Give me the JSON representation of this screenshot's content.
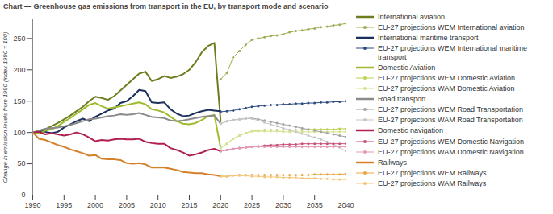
{
  "chart_data": {
    "type": "line",
    "title": "Chart — Greenhouse gas emissions from transport in the EU, by transport mode and scenario",
    "y_label": "Change in emission levels from 1990 (index 1990 = 100)",
    "x": [
      1990,
      1991,
      1992,
      1993,
      1994,
      1995,
      1996,
      1997,
      1998,
      1999,
      2000,
      2001,
      2002,
      2003,
      2004,
      2005,
      2006,
      2007,
      2008,
      2009,
      2010,
      2011,
      2012,
      2013,
      2014,
      2015,
      2016,
      2017,
      2018,
      2019,
      2020,
      2021,
      2022,
      2023,
      2024,
      2025,
      2026,
      2027,
      2028,
      2029,
      2030,
      2031,
      2032,
      2033,
      2034,
      2035,
      2036,
      2037,
      2038,
      2039,
      2040
    ],
    "xlim": [
      1990,
      2040
    ],
    "xticks": [
      1990,
      1995,
      2000,
      2005,
      2010,
      2015,
      2020,
      2025,
      2030,
      2035,
      2040
    ],
    "ylim": [
      0,
      280
    ],
    "yticks": [
      0,
      50,
      100,
      150,
      200,
      250
    ],
    "grid": false,
    "legend": "right",
    "series": [
      {
        "name": "International aviation",
        "color": "#6e7d1e",
        "values": [
          100,
          99,
          105,
          110,
          115,
          121,
          127,
          134,
          141,
          150,
          157,
          155,
          152,
          158,
          167,
          176,
          185,
          194,
          197,
          182,
          185,
          190,
          187,
          189,
          193,
          200,
          212,
          228,
          238,
          243,
          118,
          null,
          null,
          null,
          null,
          null,
          null,
          null,
          null,
          null,
          null,
          null,
          null,
          null,
          null,
          null,
          null,
          null,
          null,
          null,
          null
        ]
      },
      {
        "name": "EU-27 projections WEM International aviation",
        "color": "#a3ab55",
        "marker": "circle",
        "values": [
          null,
          null,
          null,
          null,
          null,
          null,
          null,
          null,
          null,
          null,
          null,
          null,
          null,
          null,
          null,
          null,
          null,
          null,
          null,
          null,
          null,
          null,
          null,
          null,
          null,
          null,
          null,
          null,
          null,
          null,
          185,
          195,
          220,
          230,
          240,
          248,
          250,
          252,
          254,
          255,
          257,
          260,
          262,
          263,
          265,
          266,
          268,
          269,
          271,
          272,
          274
        ]
      },
      {
        "name": "International maritime transport",
        "color": "#1b2f5c",
        "values": [
          100,
          102,
          101,
          99,
          101,
          108,
          113,
          118,
          122,
          118,
          125,
          130,
          135,
          138,
          147,
          150,
          158,
          168,
          166,
          148,
          147,
          148,
          137,
          130,
          126,
          127,
          131,
          134,
          136,
          135,
          134,
          null,
          null,
          null,
          null,
          null,
          null,
          null,
          null,
          null,
          null,
          null,
          null,
          null,
          null,
          null,
          null,
          null,
          null,
          null,
          null
        ]
      },
      {
        "name": "EU-27 projections WEM International maritime transport",
        "color": "#2e4c80",
        "marker": "circle",
        "values": [
          null,
          null,
          null,
          null,
          null,
          null,
          null,
          null,
          null,
          null,
          null,
          null,
          null,
          null,
          null,
          null,
          null,
          null,
          null,
          null,
          null,
          null,
          null,
          null,
          null,
          null,
          null,
          null,
          null,
          null,
          133,
          134,
          135,
          137,
          139,
          141,
          142,
          143,
          144,
          144,
          145,
          145,
          146,
          146,
          147,
          147,
          148,
          148,
          149,
          149,
          150
        ]
      },
      {
        "name": "Domestic Aviation",
        "color": "#9dbb2c",
        "values": [
          100,
          98,
          103,
          105,
          110,
          117,
          123,
          130,
          137,
          144,
          147,
          142,
          138,
          140,
          142,
          144,
          146,
          148,
          145,
          137,
          135,
          132,
          125,
          118,
          114,
          113,
          115,
          120,
          126,
          128,
          75,
          null,
          null,
          null,
          null,
          null,
          null,
          null,
          null,
          null,
          null,
          null,
          null,
          null,
          null,
          null,
          null,
          null,
          null,
          null,
          null
        ]
      },
      {
        "name": "EU-27 projections WEM Domestic Aviation",
        "color": "#b9d24f",
        "marker": "circle",
        "values": [
          null,
          null,
          null,
          null,
          null,
          null,
          null,
          null,
          null,
          null,
          null,
          null,
          null,
          null,
          null,
          null,
          null,
          null,
          null,
          null,
          null,
          null,
          null,
          null,
          null,
          null,
          null,
          null,
          null,
          null,
          75,
          82,
          90,
          95,
          99,
          102,
          103,
          104,
          104,
          104,
          104,
          104,
          104,
          104,
          105,
          105,
          105,
          105,
          105,
          106,
          106
        ]
      },
      {
        "name": "EU-27 projections WAM Domestic Aviation",
        "color": "#d3e38f",
        "marker": "circle",
        "values": [
          null,
          null,
          null,
          null,
          null,
          null,
          null,
          null,
          null,
          null,
          null,
          null,
          null,
          null,
          null,
          null,
          null,
          null,
          null,
          null,
          null,
          null,
          null,
          null,
          null,
          null,
          null,
          null,
          null,
          null,
          75,
          82,
          90,
          95,
          99,
          102,
          102,
          102,
          102,
          102,
          101,
          101,
          101,
          101,
          101,
          101,
          101,
          101,
          101,
          101,
          101
        ]
      },
      {
        "name": "Road transport",
        "color": "#8a8a8a",
        "values": [
          100,
          103,
          106,
          107,
          108,
          110,
          112,
          115,
          118,
          121,
          122,
          124,
          126,
          127,
          129,
          128,
          129,
          131,
          128,
          125,
          124,
          123,
          119,
          118,
          119,
          121,
          123,
          125,
          126,
          127,
          114,
          null,
          null,
          null,
          null,
          null,
          null,
          null,
          null,
          null,
          null,
          null,
          null,
          null,
          null,
          null,
          null,
          null,
          null,
          null,
          null
        ]
      },
      {
        "name": "EU-27 projections WEM Road Transportation",
        "color": "#a3a3a3",
        "marker": "circle",
        "values": [
          null,
          null,
          null,
          null,
          null,
          null,
          null,
          null,
          null,
          null,
          null,
          null,
          null,
          null,
          null,
          null,
          null,
          null,
          null,
          null,
          null,
          null,
          null,
          null,
          null,
          null,
          null,
          null,
          null,
          null,
          114,
          118,
          120,
          121,
          122,
          123,
          121,
          119,
          117,
          115,
          113,
          111,
          109,
          107,
          105,
          103,
          101,
          99,
          97,
          95,
          93
        ]
      },
      {
        "name": "EU-27 projections WAM Road Transportation",
        "color": "#c6c6c6",
        "marker": "circle",
        "values": [
          null,
          null,
          null,
          null,
          null,
          null,
          null,
          null,
          null,
          null,
          null,
          null,
          null,
          null,
          null,
          null,
          null,
          null,
          null,
          null,
          null,
          null,
          null,
          null,
          null,
          null,
          null,
          null,
          null,
          null,
          114,
          118,
          120,
          121,
          122,
          122,
          119,
          116,
          113,
          110,
          107,
          104,
          101,
          98,
          95,
          92,
          89,
          85,
          81,
          76,
          70
        ]
      },
      {
        "name": "Domestic navigation",
        "color": "#b01e52",
        "values": [
          100,
          101,
          97,
          99,
          97,
          95,
          97,
          100,
          97,
          92,
          86,
          88,
          87,
          89,
          90,
          89,
          89,
          90,
          85,
          83,
          82,
          82,
          75,
          72,
          68,
          63,
          65,
          68,
          72,
          74,
          70,
          null,
          null,
          null,
          null,
          null,
          null,
          null,
          null,
          null,
          null,
          null,
          null,
          null,
          null,
          null,
          null,
          null,
          null,
          null,
          null
        ]
      },
      {
        "name": "EU-27 projections WEM Domestic Navigation",
        "color": "#c9507b",
        "marker": "circle",
        "values": [
          null,
          null,
          null,
          null,
          null,
          null,
          null,
          null,
          null,
          null,
          null,
          null,
          null,
          null,
          null,
          null,
          null,
          null,
          null,
          null,
          null,
          null,
          null,
          null,
          null,
          null,
          null,
          null,
          null,
          null,
          70,
          72,
          74,
          75,
          76,
          77,
          78,
          79,
          80,
          80,
          81,
          81,
          81,
          82,
          82,
          82,
          82,
          82,
          82,
          82,
          82
        ]
      },
      {
        "name": "EU-27 projections WAM Domestic Navigation",
        "color": "#e39bb4",
        "marker": "circle",
        "values": [
          null,
          null,
          null,
          null,
          null,
          null,
          null,
          null,
          null,
          null,
          null,
          null,
          null,
          null,
          null,
          null,
          null,
          null,
          null,
          null,
          null,
          null,
          null,
          null,
          null,
          null,
          null,
          null,
          null,
          null,
          70,
          72,
          74,
          75,
          76,
          77,
          77,
          77,
          77,
          77,
          77,
          77,
          77,
          77,
          77,
          77,
          77,
          77,
          77,
          77,
          77
        ]
      },
      {
        "name": "Railways",
        "color": "#d4812a",
        "values": [
          100,
          90,
          88,
          84,
          80,
          77,
          73,
          70,
          67,
          63,
          64,
          58,
          57,
          57,
          56,
          51,
          50,
          51,
          49,
          44,
          44,
          44,
          42,
          40,
          37,
          36,
          35,
          35,
          33,
          32,
          30,
          null,
          null,
          null,
          null,
          null,
          null,
          null,
          null,
          null,
          null,
          null,
          null,
          null,
          null,
          null,
          null,
          null,
          null,
          null,
          null
        ]
      },
      {
        "name": "EU-27 projections WEM Railways",
        "color": "#e8a640",
        "marker": "circle",
        "values": [
          null,
          null,
          null,
          null,
          null,
          null,
          null,
          null,
          null,
          null,
          null,
          null,
          null,
          null,
          null,
          null,
          null,
          null,
          null,
          null,
          null,
          null,
          null,
          null,
          null,
          null,
          null,
          null,
          null,
          null,
          30,
          30,
          31,
          32,
          32,
          32,
          32,
          32,
          32,
          32,
          32,
          32,
          32,
          32,
          32,
          33,
          33,
          33,
          33,
          33,
          34
        ]
      },
      {
        "name": "EU-27 projections WAM Railways",
        "color": "#f3c77a",
        "marker": "circle",
        "values": [
          null,
          null,
          null,
          null,
          null,
          null,
          null,
          null,
          null,
          null,
          null,
          null,
          null,
          null,
          null,
          null,
          null,
          null,
          null,
          null,
          null,
          null,
          null,
          null,
          null,
          null,
          null,
          null,
          null,
          null,
          30,
          30,
          31,
          31,
          31,
          30,
          30,
          29,
          29,
          29,
          28,
          28,
          28,
          27,
          27,
          27,
          26,
          26,
          25,
          25,
          25
        ]
      }
    ]
  }
}
